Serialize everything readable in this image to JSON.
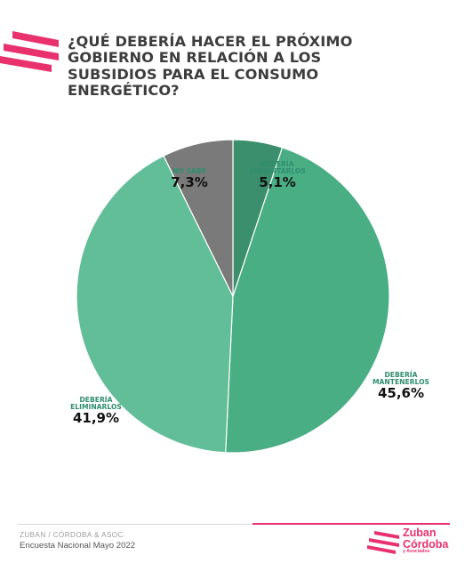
{
  "header": {
    "title": "¿QUÉ DEBERÍA HACER EL PRÓXIMO\nGOBIERNO EN RELACIÓN A LOS\nSUBSIDIOS PARA EL CONSUMO\nENERGÉTICO?"
  },
  "chart_data": {
    "type": "pie",
    "title": "¿QUÉ DEBERÍA HACER EL PRÓXIMO GOBIERNO EN RELACIÓN A LOS SUBSIDIOS PARA EL CONSUMO ENERGÉTICO?",
    "slices": [
      {
        "label": "DEBERÍA\nAUMENTARLOS",
        "value": 5.1,
        "display": "5,1%",
        "color": "#3b8f6c"
      },
      {
        "label": "DEBERÍA\nMANTENERLOS",
        "value": 45.6,
        "display": "45,6%",
        "color": "#4aae85"
      },
      {
        "label": "DEBERÍA\nELIMINARLOS",
        "value": 41.9,
        "display": "41,9%",
        "color": "#62bd99"
      },
      {
        "label": "NO SABE",
        "value": 7.3,
        "display": "7,3%",
        "color": "#7a7a7a"
      }
    ],
    "start": "12 o'clock, clockwise"
  },
  "footer": {
    "source": "ZUBAN / CÓRDOBA & ASOC",
    "survey": "Encuesta Nacional Mayo 2022",
    "logo_line1": "Zuban",
    "logo_line2": "Córdoba",
    "logo_sub": "y Asociados"
  },
  "colors": {
    "accent": "#e9316e"
  }
}
